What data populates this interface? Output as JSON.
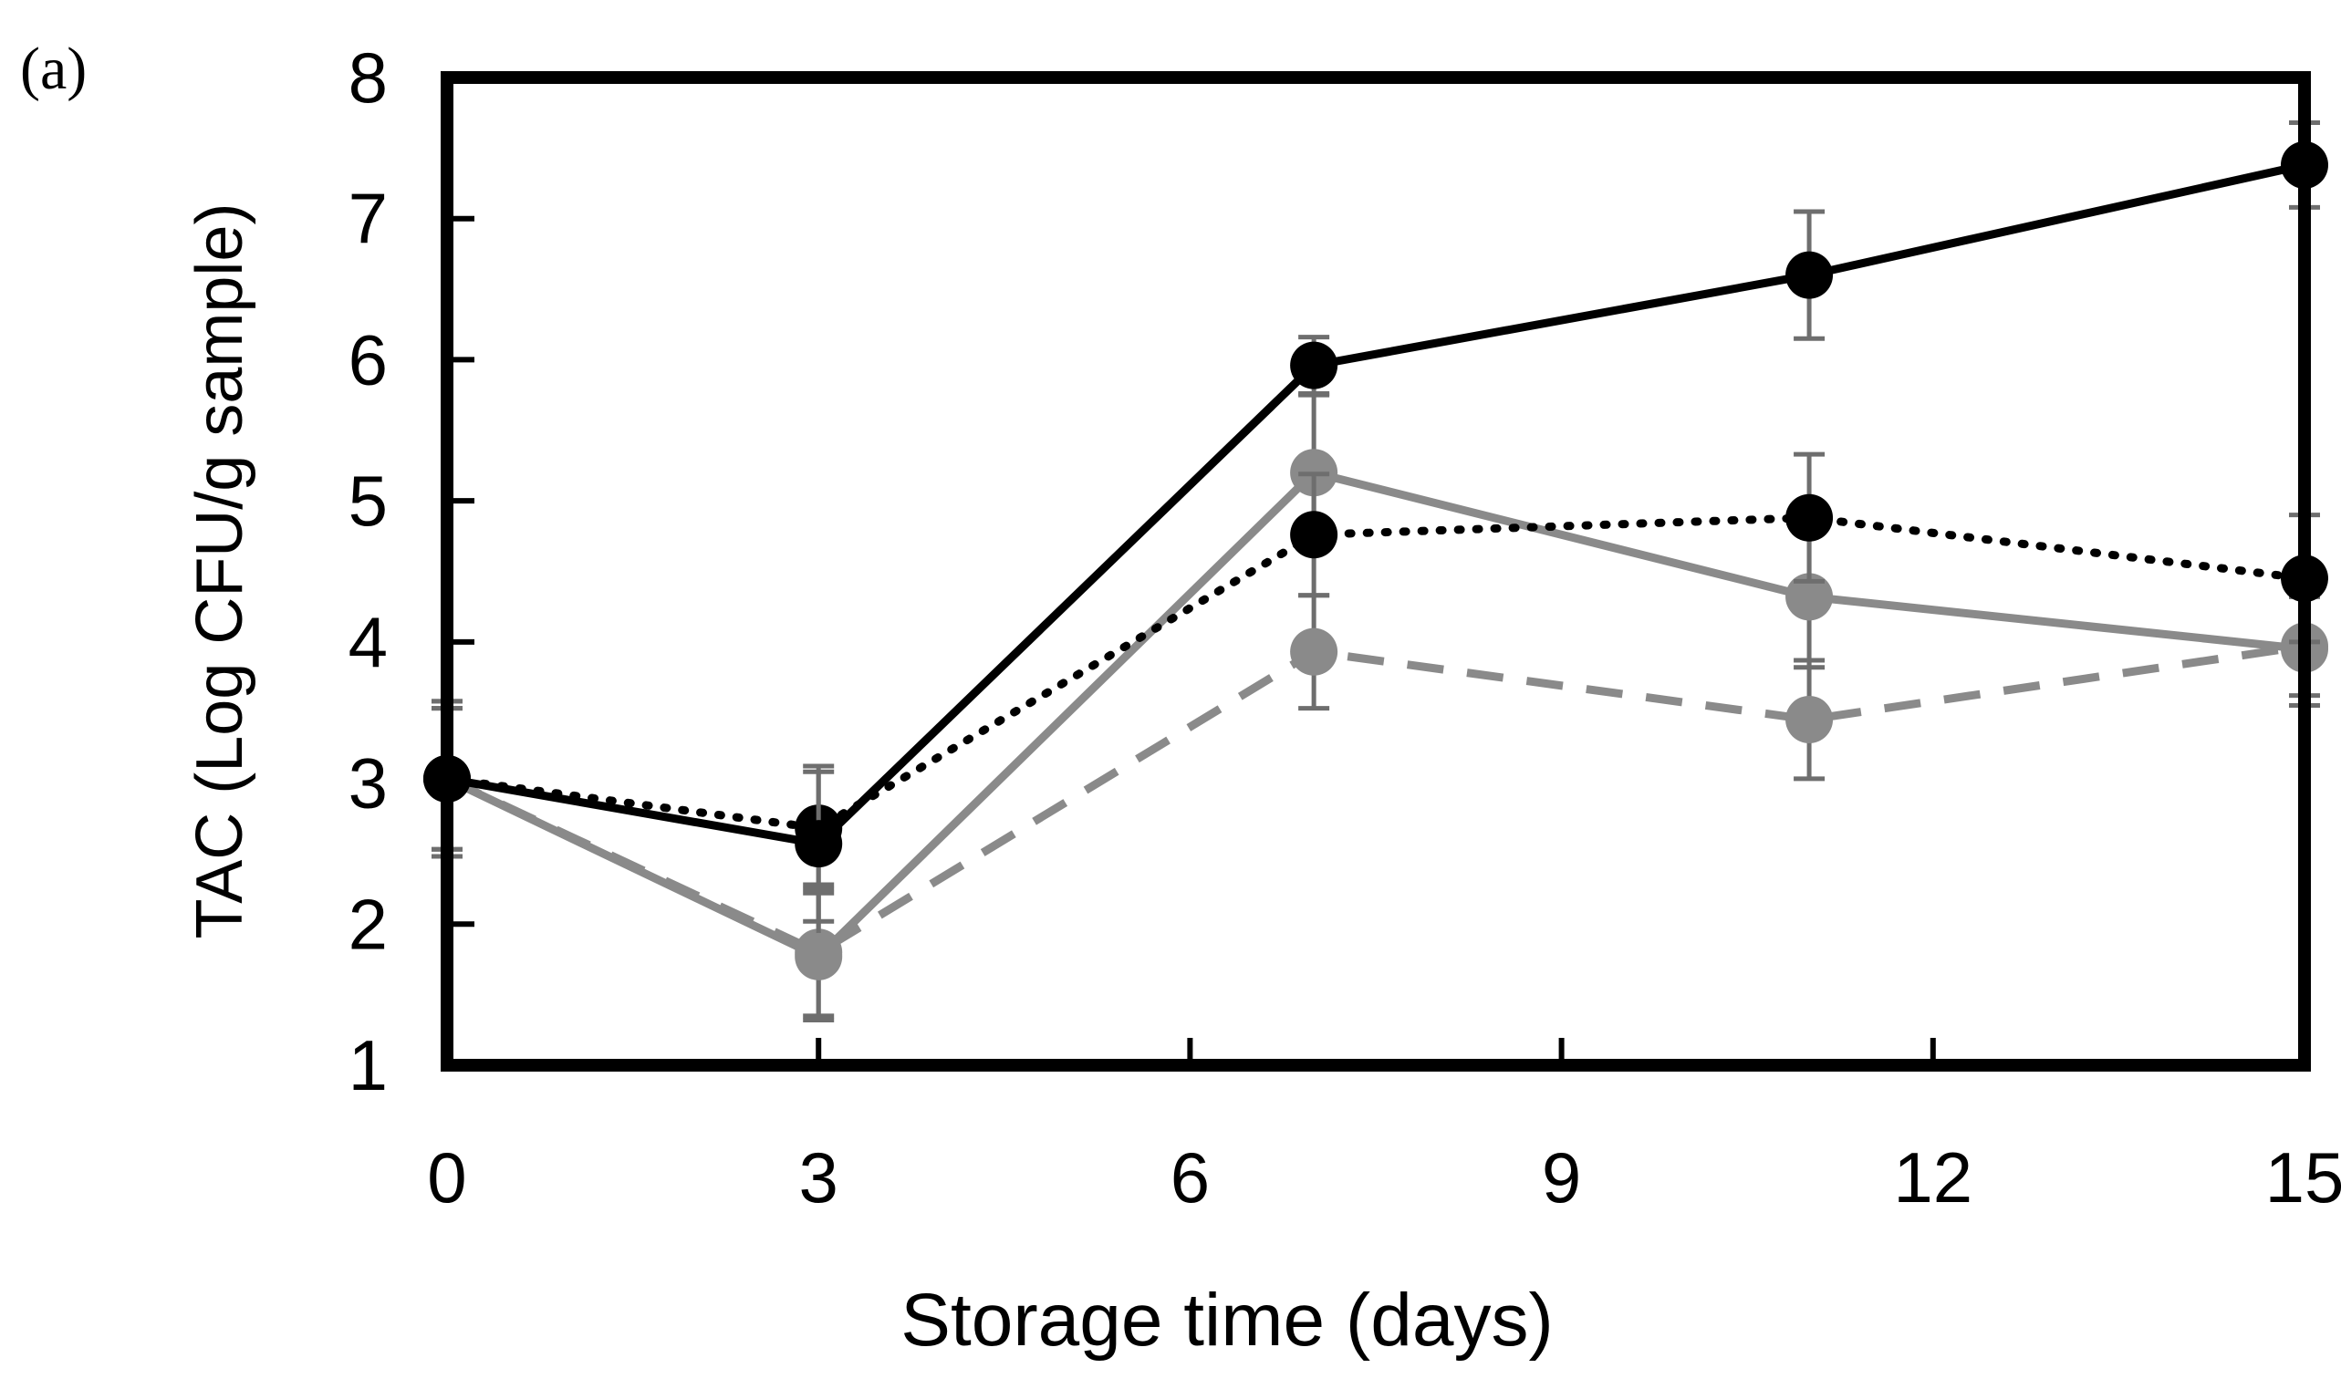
{
  "panel_label": "(a)",
  "chart_data": {
    "type": "line",
    "title": "",
    "xlabel": "Storage time (days)",
    "ylabel": "TAC (Log CFU/g sample)",
    "xlim": [
      0,
      15
    ],
    "ylim": [
      1,
      8
    ],
    "xticks": [
      0,
      3,
      6,
      9,
      12,
      15
    ],
    "yticks": [
      1,
      2,
      3,
      4,
      5,
      6,
      7,
      8
    ],
    "grid": false,
    "legend": "none",
    "x": [
      0,
      3,
      7,
      11,
      15
    ],
    "series": [
      {
        "name": "series-black-solid",
        "color": "#000000",
        "style": "solid",
        "values": [
          3.03,
          2.57,
          5.96,
          6.6,
          7.38
        ],
        "errors": [
          0.55,
          0.55,
          0.2,
          0.45,
          0.3
        ]
      },
      {
        "name": "series-black-dotted",
        "color": "#000000",
        "style": "dotted",
        "values": [
          3.03,
          2.68,
          4.76,
          4.88,
          4.45
        ],
        "errors": [
          0.5,
          0.4,
          0.43,
          0.45,
          0.45
        ]
      },
      {
        "name": "series-gray-solid",
        "color": "#8a8a8a",
        "style": "solid",
        "values": [
          3.03,
          1.77,
          5.2,
          4.32,
          3.95
        ],
        "errors": [
          0.55,
          0.45,
          0.55,
          0.5,
          0.4
        ]
      },
      {
        "name": "series-gray-dashed",
        "color": "#8a8a8a",
        "style": "dashed",
        "values": [
          3.03,
          1.8,
          3.93,
          3.45,
          3.97
        ],
        "errors": [
          0.5,
          0.45,
          0.4,
          0.42,
          0.35
        ]
      }
    ]
  }
}
